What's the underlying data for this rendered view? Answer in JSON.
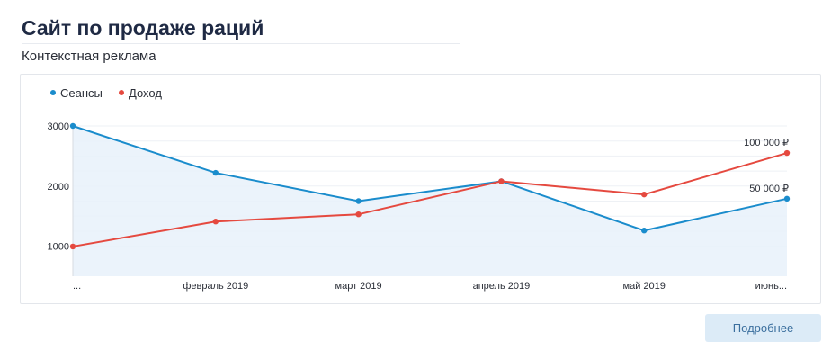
{
  "header": {
    "title": "Сайт по продаже раций",
    "subtitle": "Контекстная реклама"
  },
  "button": {
    "details_label": "Подробнее"
  },
  "colors": {
    "sessions": "#1a8ccc",
    "income": "#e5493f",
    "area": "#e8f1fa"
  },
  "chart_data": {
    "type": "line",
    "categories": [
      "...",
      "февраль 2019",
      "март 2019",
      "апрель 2019",
      "май 2019",
      "июнь..."
    ],
    "ylim": [
      500,
      3000
    ],
    "yticks": [
      "3000",
      "2000",
      "1000"
    ],
    "yticks_values": [
      3000,
      2000,
      1000
    ],
    "legend": "top-left",
    "series": [
      {
        "name": "Сеансы",
        "values": [
          3000,
          2220,
          1750,
          2080,
          1260,
          1790
        ],
        "last_label": "50 000 ₽",
        "fill": true
      },
      {
        "name": "Доход",
        "values": [
          995,
          1410,
          1530,
          2080,
          1860,
          2550
        ],
        "last_label": "100 000 ₽",
        "fill": false
      }
    ]
  }
}
